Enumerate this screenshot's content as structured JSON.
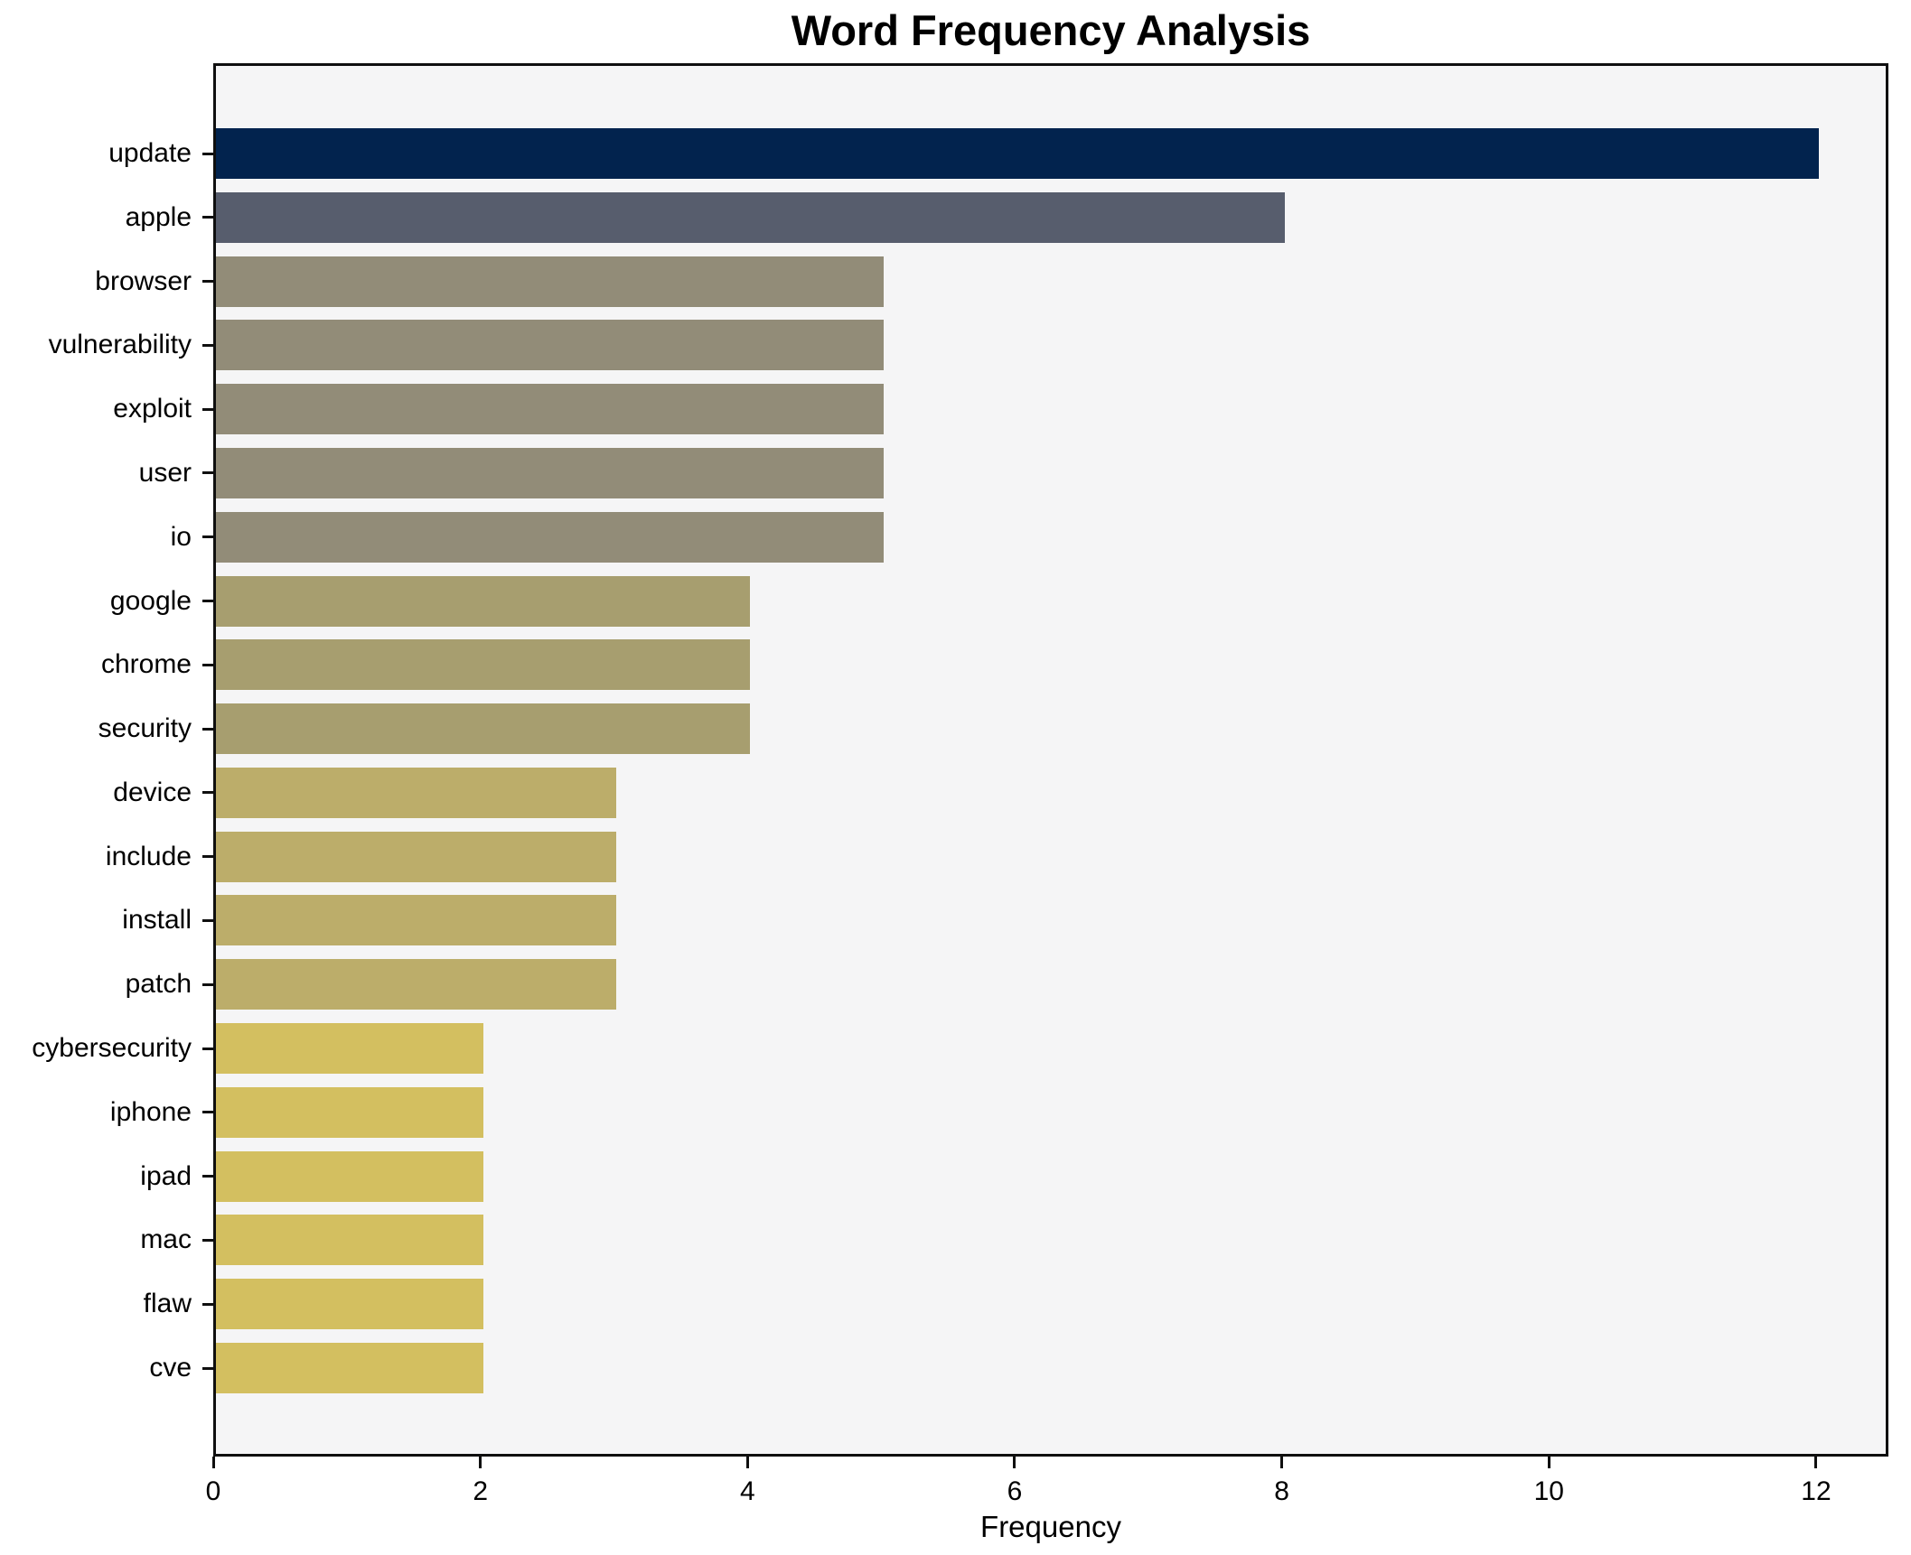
{
  "chart_data": {
    "type": "bar",
    "orientation": "horizontal",
    "title": "Word Frequency Analysis",
    "xlabel": "Frequency",
    "ylabel": "",
    "categories": [
      "update",
      "apple",
      "browser",
      "vulnerability",
      "exploit",
      "user",
      "io",
      "google",
      "chrome",
      "security",
      "device",
      "include",
      "install",
      "patch",
      "cybersecurity",
      "iphone",
      "ipad",
      "mac",
      "flaw",
      "cve"
    ],
    "values": [
      12,
      8,
      5,
      5,
      5,
      5,
      5,
      4,
      4,
      4,
      3,
      3,
      3,
      3,
      2,
      2,
      2,
      2,
      2,
      2
    ],
    "bar_colors": [
      "#02234e",
      "#575d6d",
      "#928c78",
      "#928c78",
      "#928c78",
      "#928c78",
      "#928c78",
      "#a79e6f",
      "#a79e6f",
      "#a79e6f",
      "#bcad6a",
      "#bcad6a",
      "#bcad6a",
      "#bcad6a",
      "#d3bf60",
      "#d3bf60",
      "#d3bf60",
      "#d3bf60",
      "#d3bf60",
      "#d3bf60"
    ],
    "xticks": [
      0,
      2,
      4,
      6,
      8,
      10,
      12
    ],
    "xlim": [
      0,
      12.5
    ],
    "grid": false,
    "legend": "none",
    "plot_background": "#f5f5f6",
    "figure_background": "#ffffff",
    "spine_color": "#0f0f0f",
    "text_color": "#000000"
  }
}
